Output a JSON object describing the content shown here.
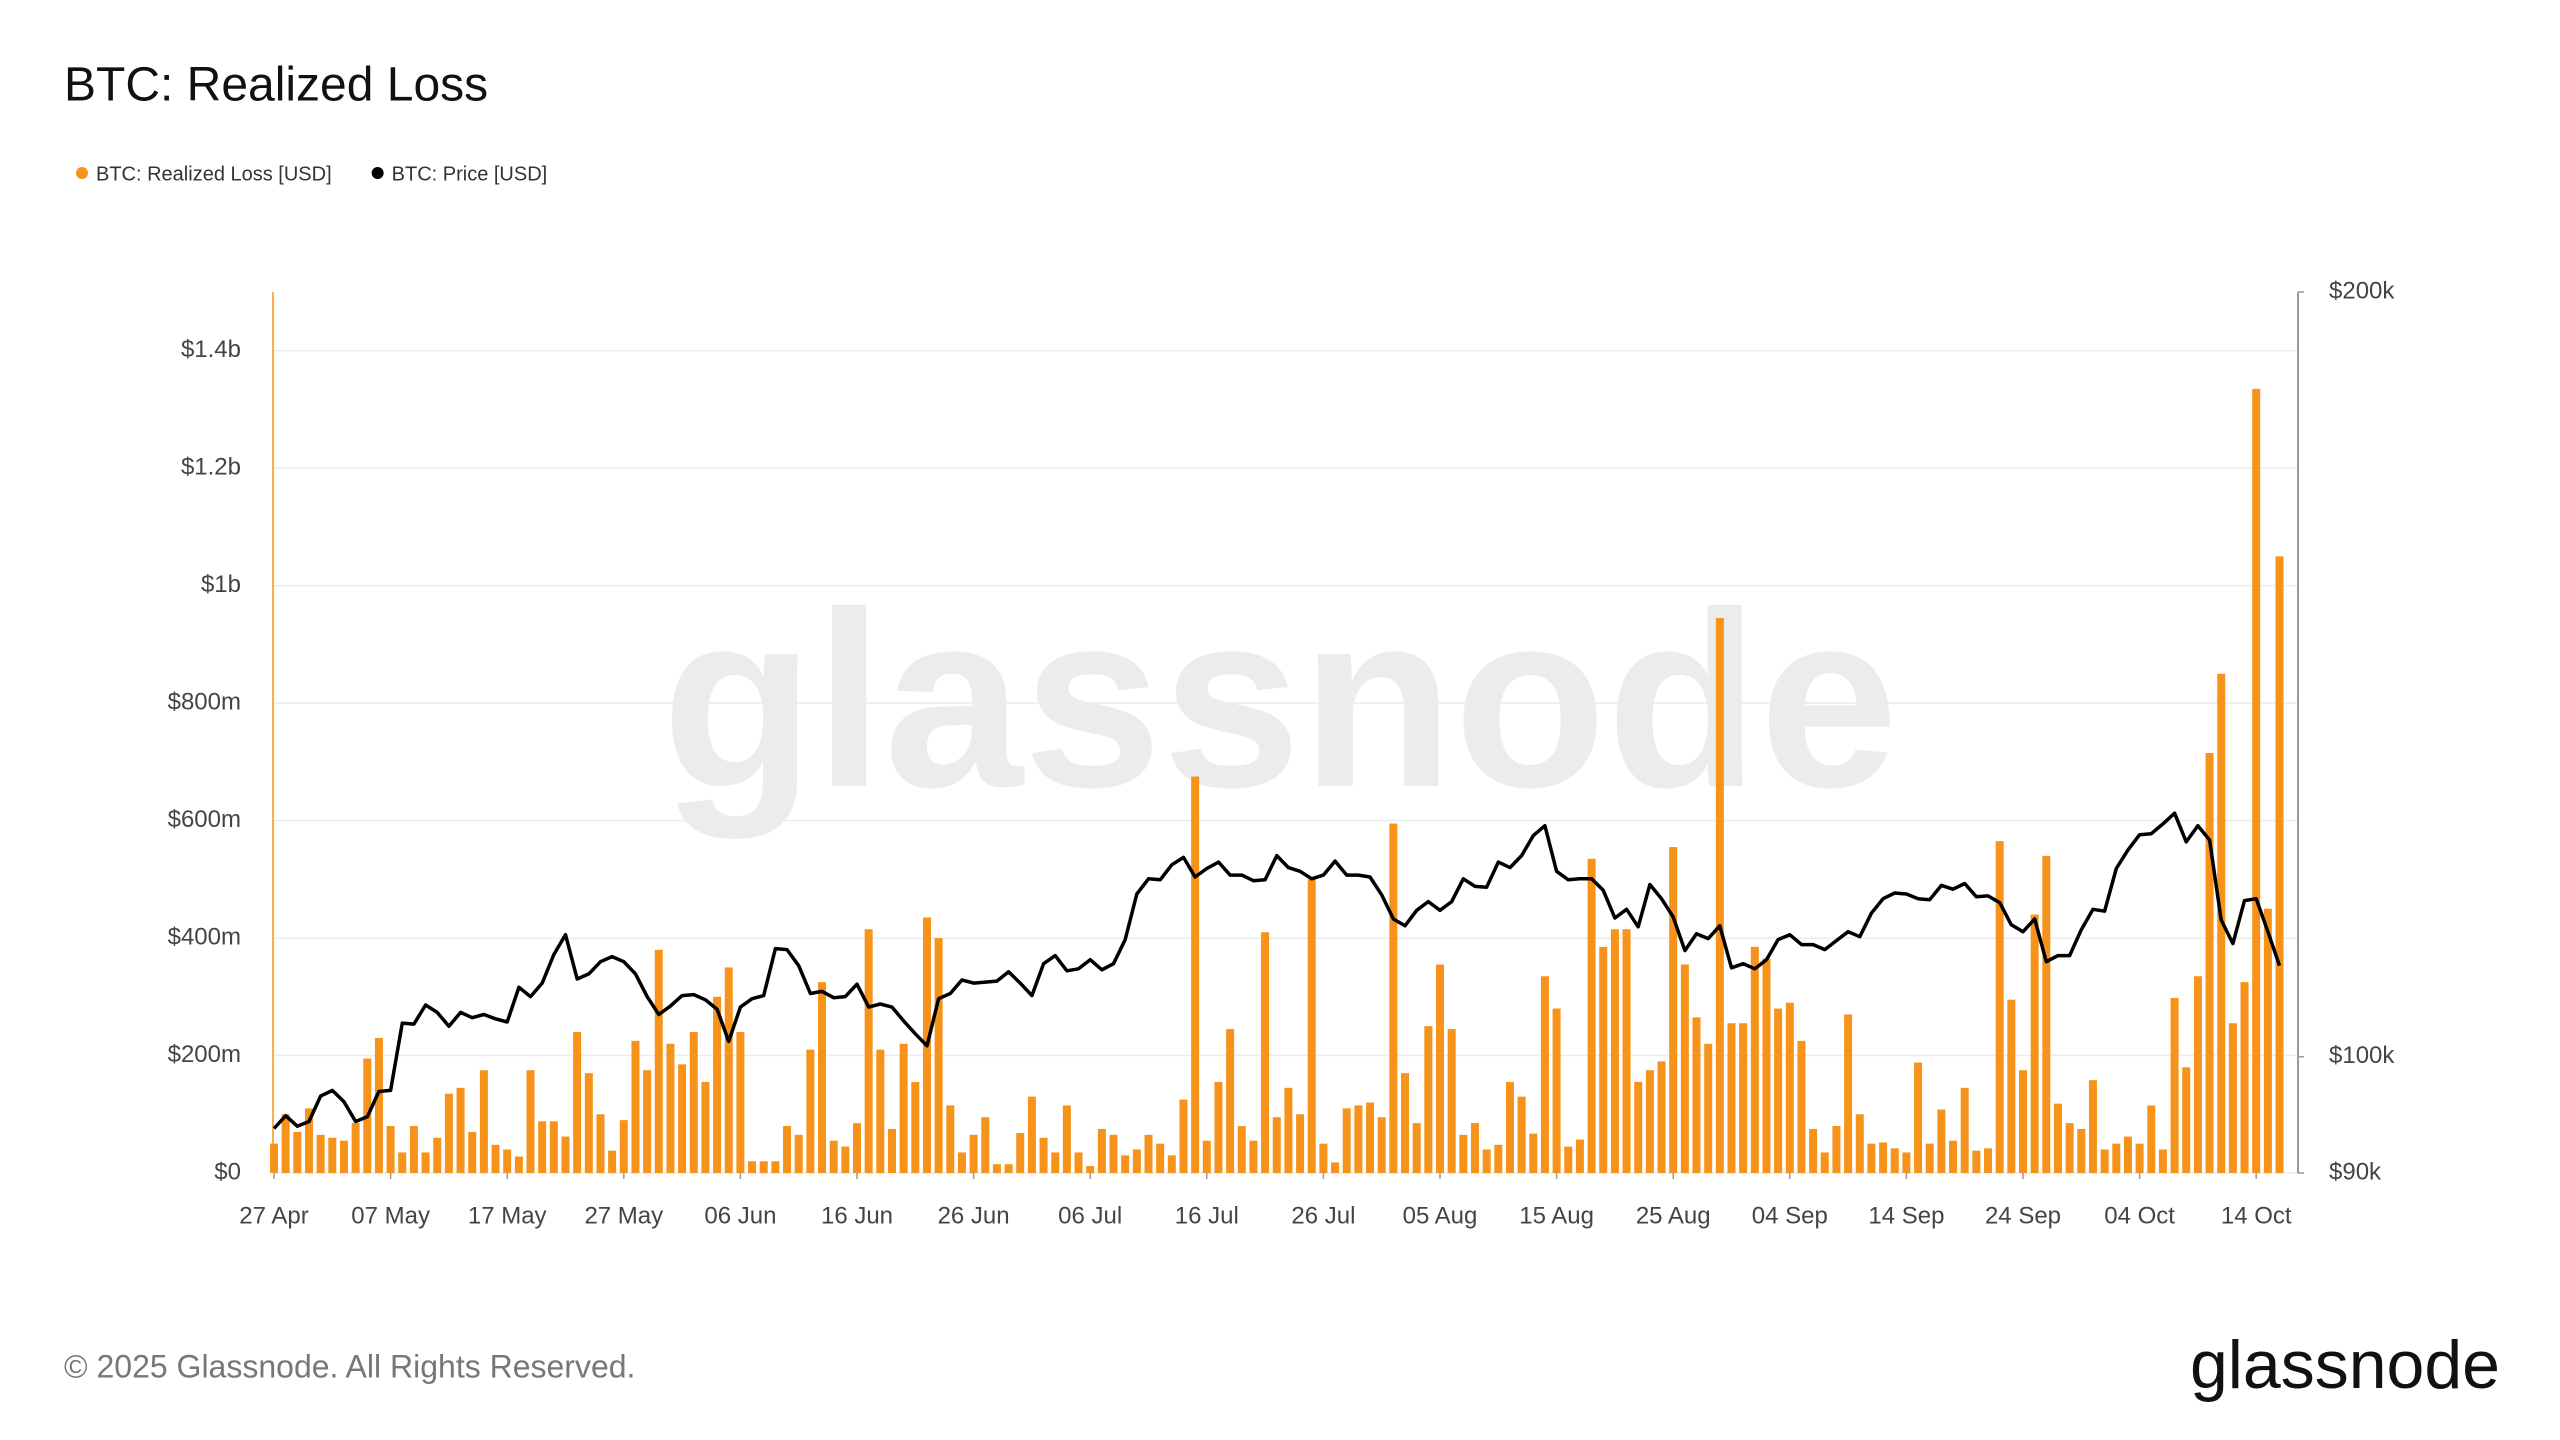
{
  "chart_data": {
    "type": "combo",
    "title": "BTC: Realized Loss",
    "legend": "top-left",
    "grid": true,
    "footer": "© 2025 Glassnode. All Rights Reserved.",
    "brand": "glassnode",
    "categories": [
      "27 Apr",
      null,
      null,
      null,
      null,
      null,
      null,
      null,
      null,
      null,
      "07 May",
      null,
      null,
      null,
      null,
      null,
      null,
      null,
      null,
      null,
      "17 May",
      null,
      null,
      null,
      null,
      null,
      null,
      null,
      null,
      null,
      "27 May",
      null,
      null,
      null,
      null,
      null,
      null,
      null,
      null,
      null,
      "06 Jun",
      null,
      null,
      null,
      null,
      null,
      null,
      null,
      null,
      null,
      "16 Jun",
      null,
      null,
      null,
      null,
      null,
      null,
      null,
      null,
      null,
      "26 Jun",
      null,
      null,
      null,
      null,
      null,
      null,
      null,
      null,
      null,
      "06 Jul",
      null,
      null,
      null,
      null,
      null,
      null,
      null,
      null,
      null,
      "16 Jul",
      null,
      null,
      null,
      null,
      null,
      null,
      null,
      null,
      null,
      "26 Jul",
      null,
      null,
      null,
      null,
      null,
      null,
      null,
      null,
      null,
      "05 Aug",
      null,
      null,
      null,
      null,
      null,
      null,
      null,
      null,
      null,
      "15 Aug",
      null,
      null,
      null,
      null,
      null,
      null,
      null,
      null,
      null,
      "25 Aug",
      null,
      null,
      null,
      null,
      null,
      null,
      null,
      null,
      null,
      "04 Sep",
      null,
      null,
      null,
      null,
      null,
      null,
      null,
      null,
      null,
      "14 Sep",
      null,
      null,
      null,
      null,
      null,
      null,
      null,
      null,
      null,
      "24 Sep",
      null,
      null,
      null,
      null,
      null,
      null,
      null,
      null,
      null,
      "04 Oct",
      null,
      null,
      null,
      null,
      null,
      null,
      null,
      null,
      null,
      "14 Oct",
      null,
      null
    ],
    "ylim": [
      0,
      1500000000
    ],
    "yticks": [
      {
        "value": 0,
        "label": "$0"
      },
      {
        "value": 200000000,
        "label": "$200m"
      },
      {
        "value": 400000000,
        "label": "$400m"
      },
      {
        "value": 600000000,
        "label": "$600m"
      },
      {
        "value": 800000000,
        "label": "$800m"
      },
      {
        "value": 1000000000,
        "label": "$1b"
      },
      {
        "value": 1200000000,
        "label": "$1.2b"
      },
      {
        "value": 1400000000,
        "label": "$1.4b"
      }
    ],
    "y2lim": [
      90000,
      200000
    ],
    "y2scale": "log",
    "y2ticks": [
      {
        "value": 90000,
        "label": "$90k"
      },
      {
        "value": 100000,
        "label": "$100k"
      },
      {
        "value": 200000,
        "label": "$200k"
      }
    ],
    "series": [
      {
        "name": "BTC: Realized Loss [USD]",
        "type": "bar",
        "color": "#f7931a",
        "values": [
          50000000.0,
          100000000.0,
          70000000.0,
          110000000.0,
          65000000.0,
          60000000.0,
          55000000.0,
          85000000.0,
          195000000.0,
          230000000.0,
          80000000.0,
          35000000.0,
          80000000.0,
          35000000.0,
          60000000.0,
          135000000.0,
          145000000.0,
          70000000.0,
          175000000.0,
          48000000.0,
          40000000.0,
          28000000.0,
          175000000.0,
          88000000.0,
          88000000.0,
          62000000.0,
          240000000.0,
          170000000.0,
          100000000.0,
          38000000.0,
          90000000.0,
          225000000.0,
          175000000.0,
          380000000.0,
          220000000.0,
          185000000.0,
          240000000.0,
          155000000.0,
          300000000.0,
          350000000.0,
          240000000.0,
          20000000.0,
          20000000.0,
          20000000.0,
          80000000.0,
          65000000.0,
          210000000.0,
          325000000.0,
          55000000.0,
          45000000.0,
          85000000.0,
          415000000.0,
          210000000.0,
          75000000.0,
          220000000.0,
          155000000.0,
          435000000.0,
          400000000.0,
          115000000.0,
          35000000.0,
          65000000.0,
          95000000.0,
          15000000.0,
          15000000.0,
          68000000.0,
          130000000.0,
          60000000.0,
          35000000.0,
          115000000.0,
          35000000.0,
          12000000.0,
          75000000.0,
          65000000.0,
          30000000.0,
          40000000.0,
          65000000.0,
          50000000.0,
          30000000.0,
          125000000.0,
          675000000.0,
          55000000.0,
          155000000.0,
          245000000.0,
          80000000.0,
          55000000.0,
          410000000.0,
          95000000.0,
          145000000.0,
          100000000.0,
          500000000.0,
          50000000.0,
          18000000.0,
          110000000.0,
          115000000.0,
          120000000.0,
          95000000.0,
          595000000.0,
          170000000.0,
          85000000.0,
          250000000.0,
          355000000.0,
          245000000.0,
          65000000.0,
          85000000.0,
          40000000.0,
          48000000.0,
          155000000.0,
          130000000.0,
          67000000.0,
          335000000.0,
          280000000.0,
          45000000.0,
          57000000.0,
          535000000.0,
          385000000.0,
          415000000.0,
          415000000.0,
          155000000.0,
          175000000.0,
          190000000.0,
          555000000.0,
          355000000.0,
          265000000.0,
          220000000.0,
          945000000.0,
          255000000.0,
          255000000.0,
          385000000.0,
          365000000.0,
          280000000.0,
          290000000.0,
          225000000.0,
          75000000.0,
          35000000.0,
          80000000.0,
          270000000.0,
          100000000.0,
          50000000.0,
          52000000.0,
          42000000.0,
          35000000.0,
          188000000.0,
          50000000.0,
          108000000.0,
          55000000.0,
          145000000.0,
          38000000.0,
          42000000.0,
          565000000.0,
          295000000.0,
          175000000.0,
          440000000.0,
          540000000.0,
          118000000.0,
          85000000.0,
          75000000.0,
          158000000.0,
          40000000.0,
          50000000.0,
          62000000.0,
          50000000.0,
          115000000.0,
          40000000.0,
          298000000.0,
          180000000.0,
          335000000.0,
          715000000.0,
          850000000.0,
          255000000.0,
          325000000.0,
          1335000000.0,
          450000000.0,
          1050000000.0
        ]
      },
      {
        "name": "BTC: Price [USD]",
        "type": "line",
        "color": "#000000",
        "axis": "y2",
        "values": [
          93700,
          94800,
          93900,
          94300,
          96500,
          97000,
          96000,
          94300,
          94700,
          96900,
          97000,
          103100,
          103000,
          104800,
          104100,
          102800,
          104100,
          103600,
          103900,
          103500,
          103200,
          106500,
          105600,
          106900,
          109700,
          111700,
          107300,
          107800,
          109000,
          109500,
          109000,
          107800,
          105600,
          103900,
          104700,
          105700,
          105800,
          105300,
          104400,
          101400,
          104600,
          105400,
          105700,
          110300,
          110200,
          108600,
          105900,
          106100,
          105500,
          105600,
          106800,
          104600,
          104900,
          104600,
          103300,
          102100,
          101000,
          105400,
          105900,
          107200,
          106900,
          107000,
          107100,
          108000,
          106900,
          105700,
          108800,
          109600,
          108100,
          108300,
          109200,
          108200,
          108800,
          111200,
          115900,
          117500,
          117400,
          119000,
          119800,
          117700,
          118600,
          119300,
          117900,
          117900,
          117300,
          117400,
          120000,
          118700,
          118300,
          117500,
          117900,
          119400,
          117900,
          117900,
          117700,
          115800,
          113300,
          112600,
          114200,
          115100,
          114200,
          115100,
          117500,
          116700,
          116600,
          119300,
          118700,
          120000,
          122200,
          123300,
          118300,
          117400,
          117500,
          117500,
          116300,
          113400,
          114300,
          112500,
          116900,
          115400,
          113500,
          110100,
          111800,
          111300,
          112600,
          108400,
          108800,
          108300,
          109200,
          111200,
          111700,
          110700,
          110700,
          110200,
          111100,
          112000,
          111500,
          113900,
          115400,
          116000,
          115900,
          115400,
          115300,
          116800,
          116400,
          117000,
          115600,
          115700,
          115000,
          112700,
          112000,
          113300,
          109000,
          109600,
          109600,
          112200,
          114300,
          114100,
          118600,
          120600,
          122300,
          122400,
          123500,
          124700,
          121500,
          123300,
          121700,
          113200,
          110800,
          115200,
          115400,
          112000,
          108600
        ]
      }
    ]
  }
}
